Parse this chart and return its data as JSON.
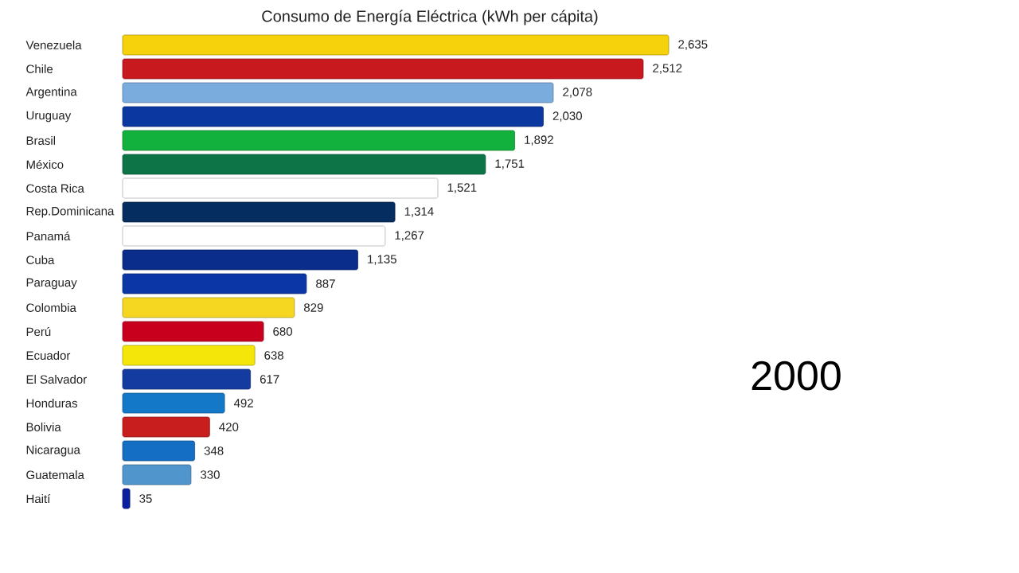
{
  "chart_data": {
    "type": "bar",
    "orientation": "horizontal",
    "title": "Consumo de Energía Eléctrica (kWh per cápita)",
    "categories": [
      "Venezuela",
      "Chile",
      "Argentina",
      "Uruguay",
      "Brasil",
      "México",
      "Costa Rica",
      "Rep.Dominicana",
      "Panamá",
      "Cuba",
      "Paraguay",
      "Colombia",
      "Perú",
      "Ecuador",
      "El Salvador",
      "Honduras",
      "Bolivia",
      "Nicaragua",
      "Guatemala",
      "Haití"
    ],
    "values": [
      2635,
      2512,
      2078,
      2030,
      1892,
      1751,
      1521,
      1314,
      1267,
      1135,
      887,
      829,
      680,
      638,
      617,
      492,
      420,
      348,
      330,
      35
    ],
    "value_labels": [
      "2,635",
      "2,512",
      "2,078",
      "2,030",
      "1,892",
      "1,751",
      "1,521",
      "1,314",
      "1,267",
      "1,135",
      "887",
      "829",
      "680",
      "638",
      "617",
      "492",
      "420",
      "348",
      "330",
      "35"
    ],
    "colors": [
      "#f5d20c",
      "#c8191e",
      "#7aaddd",
      "#0a37a0",
      "#12b03c",
      "#0d7447",
      "#ffffff",
      "#062d5f",
      "#ffffff",
      "#0a2d8c",
      "#0a37a5",
      "#f5d722",
      "#c8001e",
      "#f5e60a",
      "#143ca0",
      "#1478c8",
      "#c81e1e",
      "#146ec3",
      "#5096cd",
      "#0a1ea0"
    ],
    "annotations": [
      "2000"
    ]
  }
}
